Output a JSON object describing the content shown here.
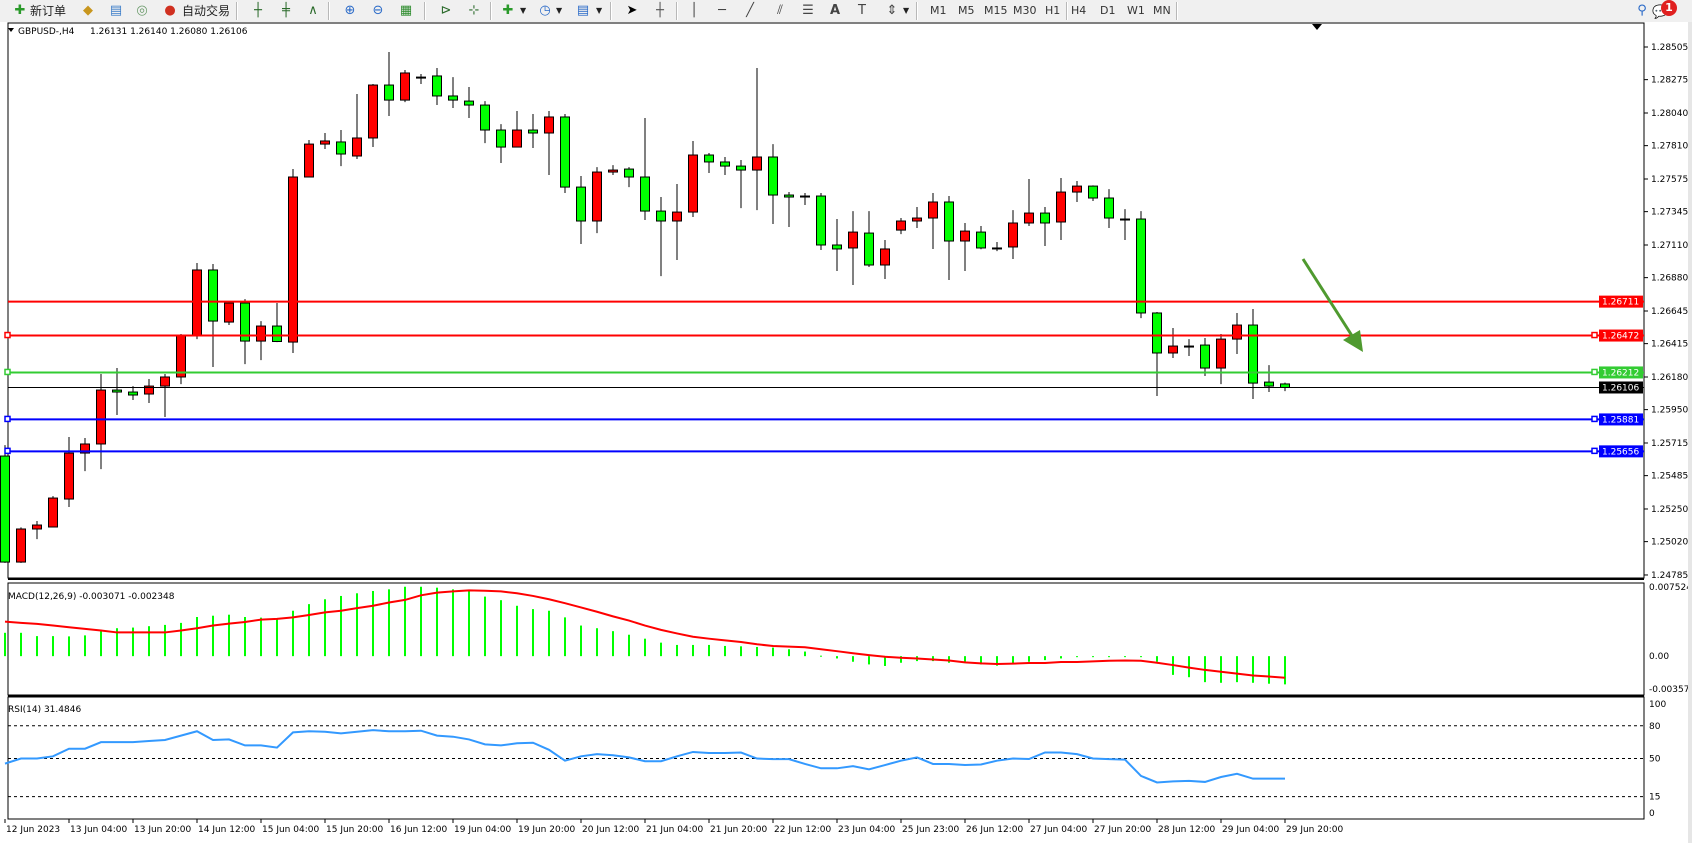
{
  "toolbar": {
    "new_order_label": "新订单",
    "auto_trading_label": "自动交易",
    "timeframes": [
      "M1",
      "M5",
      "M15",
      "M30",
      "H1",
      "H4",
      "D1",
      "W1",
      "MN"
    ],
    "active_timeframe": "H4",
    "notification_count": "1",
    "icons": [
      "new-order-icon",
      "history-center-icon",
      "market-watch-icon",
      "signals-icon",
      "auto-trading-icon",
      "bar-chart-icon",
      "candlestick-icon",
      "line-chart-icon",
      "zoom-in-icon",
      "zoom-out-icon",
      "tile-windows-icon",
      "chart-shift-icon",
      "autoscroll-icon",
      "indicators-icon",
      "periods-icon",
      "templates-icon",
      "cursor-icon",
      "crosshair-icon",
      "vertical-line-icon",
      "horizontal-line-icon",
      "trendline-icon",
      "equidistant-channel-icon",
      "fibonacci-icon",
      "text-icon",
      "text-label-icon",
      "arrows-icon",
      "search-icon",
      "notification-icon"
    ]
  },
  "chart": {
    "symbol": "GBPUSD-,H4",
    "ohlc_text": "1.26131 1.26140 1.26080 1.26106",
    "macd_label": "MACD(12,26,9) -0.003071 -0.002348",
    "rsi_label": "RSI(14) 31.4846"
  },
  "colors": {
    "bull": "#ff0000",
    "bear": "#00ff00",
    "macd_hist": "#00ff00",
    "signal": "#ff0000",
    "rsi": "#3399ff",
    "arrow": "#4f9a2f"
  },
  "chart_data": {
    "type": "candlestick",
    "title": "GBPUSD-,H4",
    "price_ticks": [
      "1.28505",
      "1.28275",
      "1.28040",
      "1.27810",
      "1.27575",
      "1.27345",
      "1.27110",
      "1.26880",
      "1.26645",
      "1.26415",
      "1.26180",
      "1.25950",
      "1.25715",
      "1.25485",
      "1.25250",
      "1.25020",
      "1.24785"
    ],
    "ylim": [
      1.24785,
      1.28505
    ],
    "time_labels": [
      "12 Jun 2023",
      "13 Jun 04:00",
      "13 Jun 20:00",
      "14 Jun 12:00",
      "15 Jun 04:00",
      "15 Jun 20:00",
      "16 Jun 12:00",
      "19 Jun 04:00",
      "19 Jun 20:00",
      "20 Jun 12:00",
      "21 Jun 04:00",
      "21 Jun 20:00",
      "22 Jun 12:00",
      "23 Jun 04:00",
      "25 Jun 23:00",
      "26 Jun 12:00",
      "27 Jun 04:00",
      "27 Jun 20:00",
      "28 Jun 12:00",
      "29 Jun 04:00",
      "29 Jun 20:00"
    ],
    "ohlc": [
      [
        1.25623,
        1.257,
        1.2487,
        1.24876
      ],
      [
        1.24876,
        1.2512,
        1.2487,
        1.25109
      ],
      [
        1.25109,
        1.25165,
        1.25038,
        1.25137
      ],
      [
        1.25123,
        1.25341,
        1.25123,
        1.25327
      ],
      [
        1.2532,
        1.25757,
        1.25264,
        1.25644
      ],
      [
        1.25644,
        1.2575,
        1.25517,
        1.25708
      ],
      [
        1.25708,
        1.26201,
        1.25531,
        1.26088
      ],
      [
        1.26088,
        1.26243,
        1.25912,
        1.26074
      ],
      [
        1.26074,
        1.26116,
        1.26018,
        1.26053
      ],
      [
        1.2606,
        1.26166,
        1.25997,
        1.26116
      ],
      [
        1.26116,
        1.26201,
        1.25898,
        1.2618
      ],
      [
        1.2618,
        1.26483,
        1.2613,
        1.26469
      ],
      [
        1.26469,
        1.26983,
        1.26447,
        1.26934
      ],
      [
        1.26934,
        1.26976,
        1.2625,
        1.26574
      ],
      [
        1.26567,
        1.26715,
        1.26546,
        1.26701
      ],
      [
        1.26701,
        1.26729,
        1.26271,
        1.26433
      ],
      [
        1.26433,
        1.26574,
        1.26299,
        1.26539
      ],
      [
        1.26539,
        1.26701,
        1.26426,
        1.2643
      ],
      [
        1.26426,
        1.27645,
        1.26349,
        1.27589
      ],
      [
        1.27589,
        1.2785,
        1.27589,
        1.27821
      ],
      [
        1.27821,
        1.27899,
        1.27786,
        1.27843
      ],
      [
        1.27836,
        1.2792,
        1.27666,
        1.27751
      ],
      [
        1.27737,
        1.28174,
        1.27716,
        1.27864
      ],
      [
        1.27864,
        1.28244,
        1.278,
        1.28237
      ],
      [
        1.28237,
        1.2847,
        1.28019,
        1.28131
      ],
      [
        1.28131,
        1.28343,
        1.28117,
        1.28322
      ],
      [
        1.28293,
        1.28315,
        1.28244,
        1.2829
      ],
      [
        1.28301,
        1.28357,
        1.28096,
        1.2816
      ],
      [
        1.2816,
        1.28293,
        1.28075,
        1.28131
      ],
      [
        1.28124,
        1.28223,
        1.28005,
        1.28096
      ],
      [
        1.28096,
        1.28124,
        1.27828,
        1.2792
      ],
      [
        1.2792,
        1.27962,
        1.27688,
        1.278
      ],
      [
        1.278,
        1.28054,
        1.278,
        1.2792
      ],
      [
        1.2792,
        1.28033,
        1.27793,
        1.27899
      ],
      [
        1.27899,
        1.28054,
        1.27603,
        1.28012
      ],
      [
        1.28012,
        1.28033,
        1.27476,
        1.27518
      ],
      [
        1.27518,
        1.27596,
        1.27117,
        1.27279
      ],
      [
        1.27279,
        1.27659,
        1.27194,
        1.27624
      ],
      [
        1.27624,
        1.27673,
        1.27603,
        1.27638
      ],
      [
        1.27645,
        1.27659,
        1.27518,
        1.27589
      ],
      [
        1.27589,
        1.28005,
        1.27286,
        1.27349
      ],
      [
        1.27349,
        1.27448,
        1.26891,
        1.27279
      ],
      [
        1.27279,
        1.2754,
        1.27004,
        1.27342
      ],
      [
        1.27342,
        1.27843,
        1.27307,
        1.27744
      ],
      [
        1.27744,
        1.27758,
        1.27617,
        1.27695
      ],
      [
        1.27695,
        1.2773,
        1.27603,
        1.27666
      ],
      [
        1.27666,
        1.27709,
        1.2737,
        1.27638
      ],
      [
        1.27638,
        1.28357,
        1.27356,
        1.2773
      ],
      [
        1.2773,
        1.27821,
        1.27258,
        1.27462
      ],
      [
        1.27462,
        1.27483,
        1.27237,
        1.27448
      ],
      [
        1.27455,
        1.27476,
        1.27392,
        1.27452
      ],
      [
        1.27455,
        1.27476,
        1.27075,
        1.2711
      ],
      [
        1.2711,
        1.27293,
        1.26927,
        1.27082
      ],
      [
        1.27089,
        1.27349,
        1.26828,
        1.27201
      ],
      [
        1.27194,
        1.27349,
        1.26955,
        1.26969
      ],
      [
        1.26969,
        1.27145,
        1.2687,
        1.27082
      ],
      [
        1.27215,
        1.273,
        1.27187,
        1.27279
      ],
      [
        1.27279,
        1.27378,
        1.2723,
        1.273
      ],
      [
        1.273,
        1.27476,
        1.27082,
        1.27413
      ],
      [
        1.27413,
        1.27455,
        1.26863,
        1.27138
      ],
      [
        1.27138,
        1.27265,
        1.26927,
        1.27208
      ],
      [
        1.27201,
        1.27244,
        1.2708,
        1.27089
      ],
      [
        1.27089,
        1.27131,
        1.27067,
        1.27085
      ],
      [
        1.27096,
        1.27356,
        1.27011,
        1.27265
      ],
      [
        1.27265,
        1.27575,
        1.27244,
        1.27335
      ],
      [
        1.27335,
        1.27378,
        1.27103,
        1.27265
      ],
      [
        1.27272,
        1.27582,
        1.27145,
        1.27483
      ],
      [
        1.27483,
        1.27561,
        1.27413,
        1.27525
      ],
      [
        1.27525,
        1.2753,
        1.2742,
        1.27441
      ],
      [
        1.27441,
        1.27504,
        1.2723,
        1.273
      ],
      [
        1.27293,
        1.27363,
        1.27145,
        1.2729
      ],
      [
        1.27293,
        1.27349,
        1.26595,
        1.26631
      ],
      [
        1.26631,
        1.26638,
        1.26046,
        1.26349
      ],
      [
        1.26349,
        1.26525,
        1.26314,
        1.26398
      ],
      [
        1.26398,
        1.26447,
        1.26328,
        1.26395
      ],
      [
        1.26405,
        1.26455,
        1.26187,
        1.26243
      ],
      [
        1.26243,
        1.26483,
        1.2613,
        1.26447
      ],
      [
        1.26447,
        1.26631,
        1.26342,
        1.26546
      ],
      [
        1.26546,
        1.26659,
        1.26025,
        1.26137
      ],
      [
        1.26144,
        1.26264,
        1.26074,
        1.26116
      ],
      [
        1.26131,
        1.2614,
        1.2608,
        1.26106
      ]
    ],
    "levels": [
      {
        "price": "1.26711",
        "color": "#ff0000"
      },
      {
        "price": "1.26472",
        "color": "#ff0000"
      },
      {
        "price": "1.26212",
        "color": "#33cc33"
      },
      {
        "price": "1.26106",
        "color": "#000000"
      },
      {
        "price": "1.25881",
        "color": "#0000ff"
      },
      {
        "price": "1.25656",
        "color": "#0000ff"
      }
    ],
    "macd": {
      "ticks": [
        "0.007524",
        "0.00",
        "-0.003575"
      ],
      "ylim": [
        -0.003575,
        0.007524
      ],
      "main": [
        0.00254,
        0.00254,
        0.00218,
        0.00218,
        0.00215,
        0.00226,
        0.00286,
        0.00304,
        0.00311,
        0.00326,
        0.0034,
        0.00362,
        0.00426,
        0.0044,
        0.00451,
        0.00426,
        0.00419,
        0.00405,
        0.00494,
        0.00566,
        0.00619,
        0.00655,
        0.00684,
        0.00709,
        0.00727,
        0.00755,
        0.00755,
        0.00745,
        0.00727,
        0.00716,
        0.00648,
        0.00609,
        0.00548,
        0.00512,
        0.00494,
        0.00422,
        0.00333,
        0.00304,
        0.00272,
        0.00233,
        0.0019,
        0.00147,
        0.00122,
        0.00122,
        0.00122,
        0.00111,
        0.00107,
        0.001,
        0.00093,
        0.00075,
        0.0005,
        5e-05,
        -0.00025,
        -0.00061,
        -0.0009,
        -0.00107,
        -0.00072,
        -0.00054,
        -0.00054,
        -0.00072,
        -0.00072,
        -0.0009,
        -0.00104,
        -0.00079,
        -0.00061,
        -0.00043,
        -0.00025,
        -0.00011,
        -4e-05,
        -0.00011,
        -4e-05,
        -0.00011,
        -0.00061,
        -0.00204,
        -0.00229,
        -0.00283,
        -0.0029,
        -0.00283,
        -0.0029,
        -0.003,
        -0.003071
      ],
      "signal": [
        0.00376,
        0.00362,
        0.00351,
        0.00333,
        0.00315,
        0.00297,
        0.00279,
        0.00258,
        0.00258,
        0.00258,
        0.00258,
        0.00279,
        0.00304,
        0.00333,
        0.00354,
        0.00372,
        0.00397,
        0.00405,
        0.00422,
        0.00448,
        0.00476,
        0.00494,
        0.00523,
        0.00548,
        0.00584,
        0.00612,
        0.00662,
        0.00691,
        0.00705,
        0.00716,
        0.00712,
        0.00705,
        0.00684,
        0.00655,
        0.00619,
        0.00576,
        0.0053,
        0.00483,
        0.00433,
        0.00387,
        0.00333,
        0.00286,
        0.00247,
        0.00211,
        0.0019,
        0.00172,
        0.00154,
        0.00129,
        0.00111,
        0.00104,
        0.00097,
        0.00075,
        0.00054,
        0.00032,
        0.00011,
        -7e-05,
        -0.00018,
        -0.00025,
        -0.00036,
        -0.00047,
        -0.00068,
        -0.00079,
        -0.00086,
        -0.00082,
        -0.00075,
        -0.00075,
        -0.00064,
        -0.00064,
        -0.00057,
        -0.0005,
        -0.00047,
        -0.0005,
        -0.00072,
        -0.00097,
        -0.00125,
        -0.0015,
        -0.0017,
        -0.0019,
        -0.0021,
        -0.00222,
        -0.002348
      ]
    },
    "rsi": {
      "ticks": [
        "100",
        "80",
        "50",
        "15",
        "0"
      ],
      "levels": [
        80,
        50,
        15
      ],
      "ylim": [
        0,
        100
      ],
      "values": [
        45.3,
        50,
        50,
        52,
        59,
        59,
        65,
        65,
        65,
        66,
        67,
        71,
        75,
        67,
        67.5,
        62,
        62,
        60,
        74,
        75,
        74.5,
        73,
        74.5,
        76,
        75,
        75,
        75.5,
        71,
        70,
        67.5,
        63,
        62,
        64,
        64.5,
        58,
        48,
        52,
        54,
        53,
        51,
        47.5,
        47.5,
        52,
        56,
        55,
        55,
        55.5,
        50,
        49.4,
        49.4,
        45,
        41,
        41,
        43,
        40,
        44,
        48,
        51,
        45,
        45,
        44,
        44.5,
        48,
        50,
        49.5,
        55.5,
        55.5,
        54,
        50,
        49.4,
        49,
        34,
        28,
        29,
        29.5,
        28.5,
        33,
        36,
        31.5,
        31.5,
        31.4846
      ]
    }
  }
}
